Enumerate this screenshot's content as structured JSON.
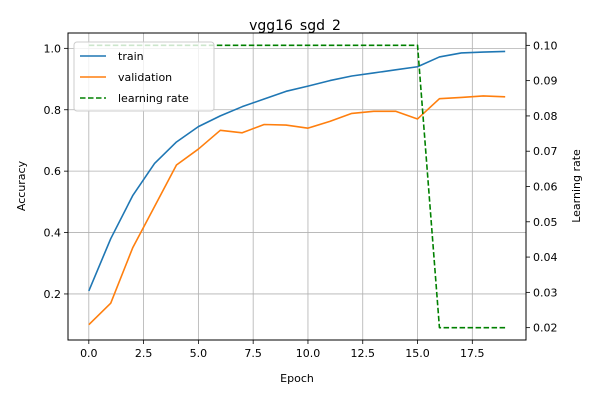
{
  "chart_data": {
    "type": "line",
    "title": "vgg16_sgd_2",
    "xlabel": "Epoch",
    "ylabel": "Accuracy",
    "y2label": "Learning rate",
    "xlim": [
      -0.95,
      19.95
    ],
    "ylim": [
      0.05,
      1.05
    ],
    "y2lim": [
      0.0165,
      0.1035
    ],
    "xticks": [
      0.0,
      2.5,
      5.0,
      7.5,
      10.0,
      12.5,
      15.0,
      17.5
    ],
    "xtick_labels": [
      "0.0",
      "2.5",
      "5.0",
      "7.5",
      "10.0",
      "12.5",
      "15.0",
      "17.5"
    ],
    "yticks": [
      0.2,
      0.4,
      0.6,
      0.8,
      1.0
    ],
    "ytick_labels": [
      "0.2",
      "0.4",
      "0.6",
      "0.8",
      "1.0"
    ],
    "y2ticks": [
      0.02,
      0.03,
      0.04,
      0.05,
      0.06,
      0.07,
      0.08,
      0.09,
      0.1
    ],
    "y2tick_labels": [
      "0.02",
      "0.03",
      "0.04",
      "0.05",
      "0.06",
      "0.07",
      "0.08",
      "0.09",
      "0.10"
    ],
    "grid": true,
    "legend_position": "top-left",
    "x": [
      0,
      1,
      2,
      3,
      4,
      5,
      6,
      7,
      8,
      9,
      10,
      11,
      12,
      13,
      14,
      15,
      16,
      17,
      18,
      19
    ],
    "series": [
      {
        "name": "train",
        "axis": "left",
        "color": "#1f77b4",
        "dash": "solid",
        "values": [
          0.21,
          0.38,
          0.52,
          0.625,
          0.695,
          0.745,
          0.78,
          0.81,
          0.835,
          0.86,
          0.877,
          0.895,
          0.91,
          0.92,
          0.93,
          0.94,
          0.972,
          0.985,
          0.988,
          0.99
        ]
      },
      {
        "name": "validation",
        "axis": "left",
        "color": "#ff7f0e",
        "dash": "solid",
        "values": [
          0.1,
          0.17,
          0.35,
          0.485,
          0.62,
          0.672,
          0.733,
          0.725,
          0.752,
          0.75,
          0.74,
          0.762,
          0.788,
          0.795,
          0.795,
          0.77,
          0.836,
          0.84,
          0.845,
          0.842
        ]
      },
      {
        "name": "learning rate",
        "axis": "right",
        "color": "#008000",
        "dash": "dashed",
        "values": [
          0.1,
          0.1,
          0.1,
          0.1,
          0.1,
          0.1,
          0.1,
          0.1,
          0.1,
          0.1,
          0.1,
          0.1,
          0.1,
          0.1,
          0.1,
          0.1,
          0.02,
          0.02,
          0.02,
          0.02
        ]
      }
    ]
  }
}
